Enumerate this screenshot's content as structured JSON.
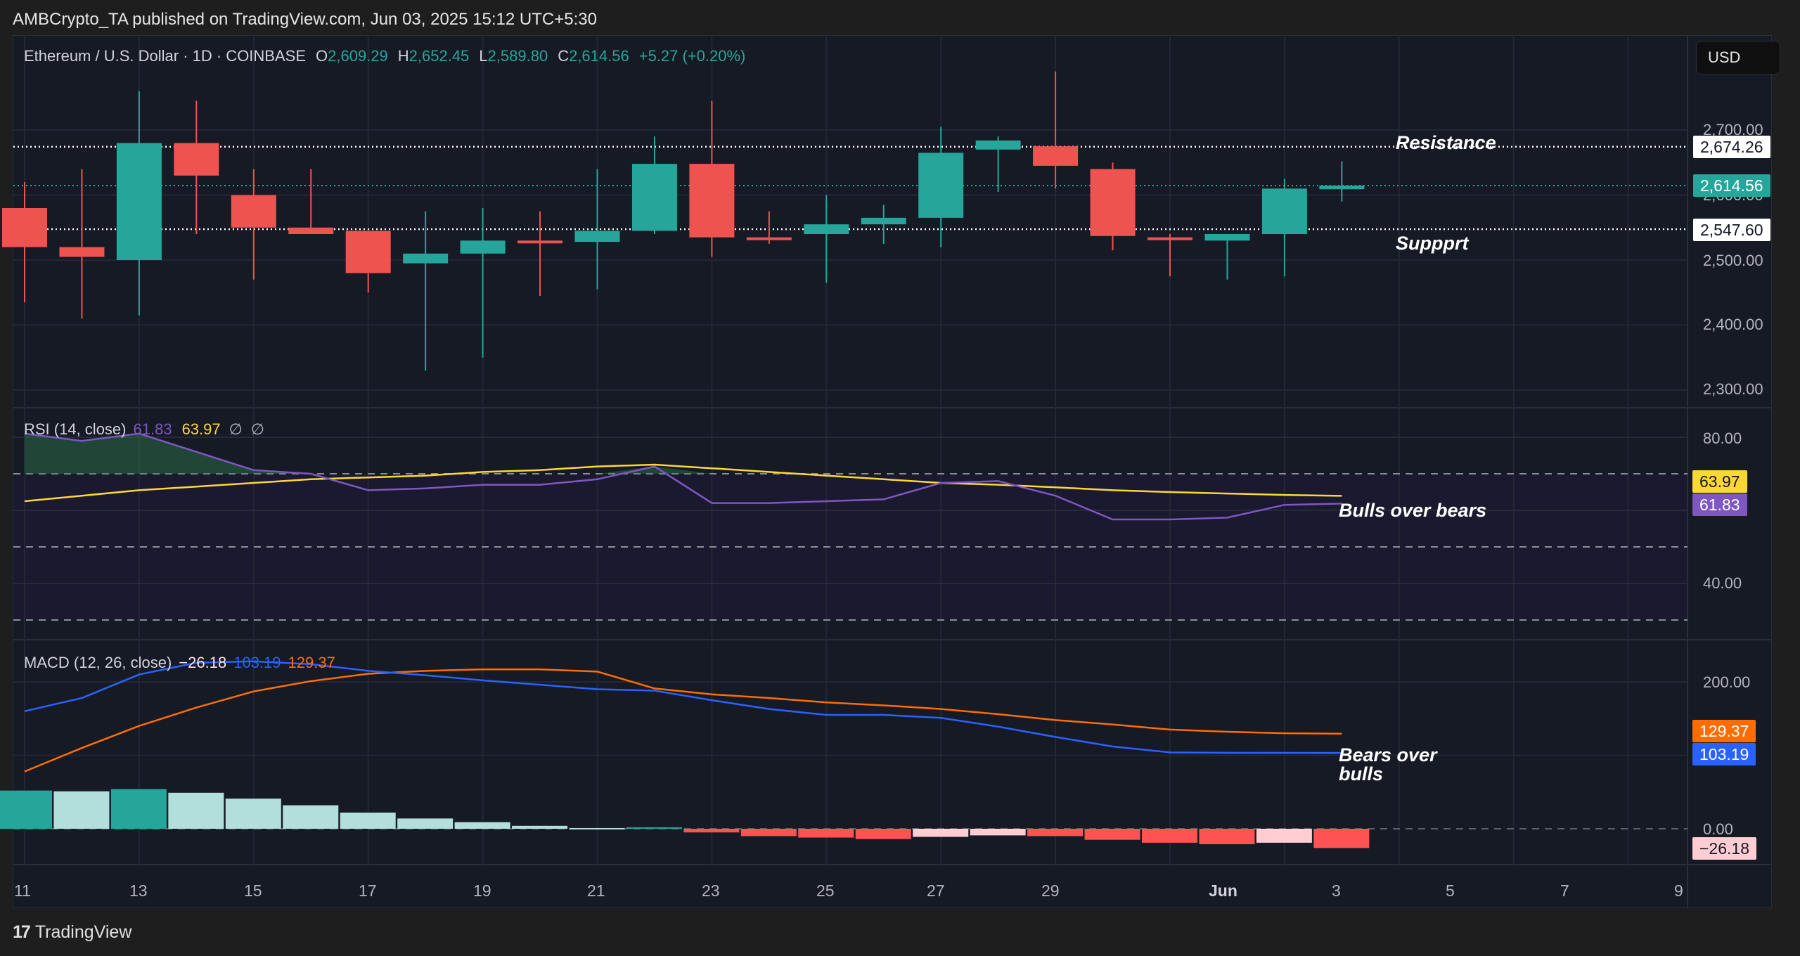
{
  "publisher": "AMBCrypto_TA published on TradingView.com, Jun 03, 2025 15:12 UTC+5:30",
  "symbol": {
    "name": "Ethereum / U.S. Dollar · 1D · COINBASE",
    "o_label": "O",
    "o": "2,609.29",
    "h_label": "H",
    "h": "2,652.45",
    "l_label": "L",
    "l": "2,589.80",
    "c_label": "C",
    "c": "2,614.56",
    "change": "+5.27 (+0.20%)"
  },
  "currency_button": "USD",
  "price_axis": [
    "2,700.00",
    "2,600.00",
    "2,500.00",
    "2,400.00",
    "2,300.00"
  ],
  "price_tags": {
    "resistance": "2,674.26",
    "last": "2,614.56",
    "support": "2,547.60"
  },
  "annotations": {
    "resistance": "Resistance",
    "support": "Suppprt",
    "rsi": "Bulls over bears",
    "macd_line1": "Bears over",
    "macd_line2": "bulls"
  },
  "rsi": {
    "title": "RSI (14, close)",
    "value": "61.83",
    "ma": "63.97",
    "na1": "∅",
    "na2": "∅",
    "axis": [
      "80.00",
      "40.00"
    ],
    "tag_ma": "63.97",
    "tag_rsi": "61.83"
  },
  "macd": {
    "title": "MACD (12, 26, close)",
    "hist": "−26.18",
    "macd": "103.19",
    "signal": "129.37",
    "axis": [
      "200.00",
      "0.00"
    ],
    "tag_signal": "129.37",
    "tag_macd": "103.19",
    "tag_hist": "−26.18"
  },
  "x_axis": [
    "11",
    "13",
    "15",
    "17",
    "19",
    "21",
    "23",
    "25",
    "27",
    "29",
    "Jun",
    "3",
    "5",
    "7",
    "9"
  ],
  "footer": {
    "logo": "17",
    "brand": "TradingView"
  },
  "colors": {
    "up": "#26a69a",
    "down": "#ef5350",
    "rsi": "#7e57c2",
    "rsi_ma": "#fdd835",
    "macd": "#2962ff",
    "signal": "#ff6d00",
    "hist_up_strong": "#26a69a",
    "hist_up_weak": "#b2dfdb",
    "hist_down_strong": "#ff5252",
    "hist_down_weak": "#ffcdd2"
  },
  "chart_data": [
    {
      "type": "candlestick",
      "title": "Ethereum / U.S. Dollar · 1D · COINBASE",
      "x": [
        "May 11",
        "May 12",
        "May 13",
        "May 14",
        "May 15",
        "May 16",
        "May 17",
        "May 18",
        "May 19",
        "May 20",
        "May 21",
        "May 22",
        "May 23",
        "May 24",
        "May 25",
        "May 26",
        "May 27",
        "May 28",
        "May 29",
        "May 30",
        "May 31",
        "Jun 1",
        "Jun 2",
        "Jun 3"
      ],
      "open": [
        2580,
        2520,
        2500,
        2680,
        2600,
        2550,
        2545,
        2495,
        2510,
        2530,
        2528,
        2545,
        2648,
        2535,
        2540,
        2555,
        2565,
        2670,
        2675,
        2640,
        2535,
        2530,
        2540,
        2609
      ],
      "high": [
        2620,
        2640,
        2760,
        2745,
        2640,
        2640,
        2540,
        2575,
        2580,
        2575,
        2640,
        2690,
        2745,
        2575,
        2600,
        2585,
        2705,
        2690,
        2790,
        2650,
        2540,
        2540,
        2625,
        2652
      ],
      "low": [
        2435,
        2410,
        2415,
        2540,
        2470,
        2540,
        2450,
        2330,
        2350,
        2445,
        2455,
        2540,
        2505,
        2525,
        2465,
        2525,
        2520,
        2605,
        2610,
        2515,
        2475,
        2470,
        2475,
        2590
      ],
      "close": [
        2520,
        2505,
        2680,
        2630,
        2550,
        2540,
        2480,
        2510,
        2530,
        2528,
        2545,
        2648,
        2535,
        2532,
        2555,
        2565,
        2665,
        2684,
        2645,
        2537,
        2533,
        2540,
        2610,
        2614.56
      ],
      "ylabel": "USD",
      "ylim": [
        2280,
        2790
      ],
      "hlines": {
        "resistance": 2674.26,
        "last": 2614.56,
        "support": 2547.6
      },
      "annotations": [
        "Resistance",
        "Suppprt"
      ]
    },
    {
      "type": "line",
      "title": "RSI (14, close)",
      "x": [
        "May 11",
        "May 12",
        "May 13",
        "May 14",
        "May 15",
        "May 16",
        "May 17",
        "May 18",
        "May 19",
        "May 20",
        "May 21",
        "May 22",
        "May 23",
        "May 24",
        "May 25",
        "May 26",
        "May 27",
        "May 28",
        "May 29",
        "May 30",
        "May 31",
        "Jun 1",
        "Jun 2",
        "Jun 3"
      ],
      "series": [
        {
          "name": "RSI",
          "values": [
            81,
            79,
            81,
            76,
            71,
            70,
            65.5,
            66,
            67,
            67,
            68.5,
            72,
            62,
            62,
            62.5,
            63,
            67.5,
            68,
            64,
            57.5,
            57.5,
            58,
            61.5,
            61.83
          ]
        },
        {
          "name": "RSI-based MA",
          "values": [
            62.5,
            64,
            65.5,
            66.5,
            67.5,
            68.5,
            69,
            69.5,
            70.5,
            71,
            72,
            72.5,
            71.5,
            70.5,
            69.5,
            68.5,
            67.5,
            67,
            66.3,
            65.5,
            65,
            64.6,
            64.2,
            63.97
          ]
        }
      ],
      "ylim": [
        26,
        88
      ],
      "bands": [
        30,
        50,
        70
      ],
      "annotations": [
        "Bulls over bears"
      ]
    },
    {
      "type": "bar+line",
      "title": "MACD (12, 26, close)",
      "x": [
        "May 11",
        "May 12",
        "May 13",
        "May 14",
        "May 15",
        "May 16",
        "May 17",
        "May 18",
        "May 19",
        "May 20",
        "May 21",
        "May 22",
        "May 23",
        "May 24",
        "May 25",
        "May 26",
        "May 27",
        "May 28",
        "May 29",
        "May 30",
        "May 31",
        "Jun 1",
        "Jun 2",
        "Jun 3"
      ],
      "series": [
        {
          "name": "Histogram",
          "values": [
            52,
            51,
            54,
            49,
            41,
            32,
            22,
            14,
            9,
            4,
            1,
            2,
            -5,
            -10,
            -12,
            -14,
            -11,
            -9,
            -10,
            -15,
            -19,
            -21,
            -19,
            -26.18
          ]
        },
        {
          "name": "MACD",
          "values": [
            160,
            178,
            210,
            226,
            228,
            224,
            215,
            209,
            202,
            196,
            190,
            188,
            175,
            163,
            155,
            155,
            151,
            139,
            125,
            112,
            104,
            103.5,
            103.3,
            103.19
          ]
        },
        {
          "name": "Signal",
          "values": [
            78,
            110,
            140,
            165,
            187,
            201,
            211,
            215,
            217,
            217,
            214,
            191,
            183,
            178,
            172,
            168,
            163,
            156,
            148,
            142,
            135,
            132,
            130,
            129.37
          ]
        }
      ],
      "ylim": [
        -70,
        250
      ],
      "annotations": [
        "Bears over bulls"
      ]
    }
  ]
}
